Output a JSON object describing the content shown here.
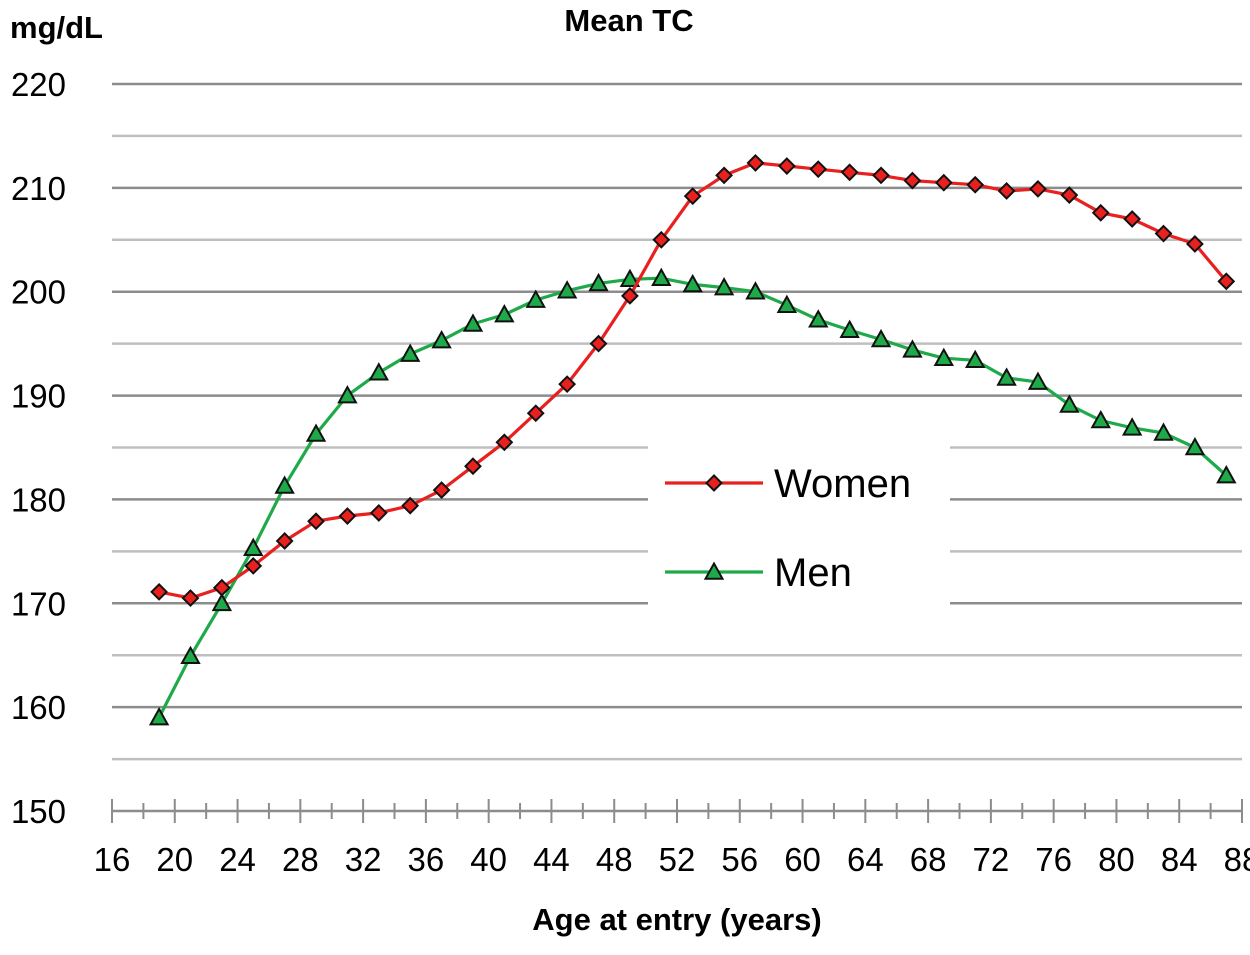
{
  "chart_data": {
    "type": "line",
    "title": "Mean TC",
    "ylabel": "mg/dL",
    "xlabel": "Age at entry (years)",
    "xlim": [
      16,
      88
    ],
    "ylim": [
      150,
      220
    ],
    "xticks": [
      16,
      20,
      24,
      28,
      32,
      36,
      40,
      44,
      48,
      52,
      56,
      60,
      64,
      68,
      72,
      76,
      80,
      84,
      88
    ],
    "yticks": [
      150,
      160,
      170,
      180,
      190,
      200,
      210,
      220
    ],
    "grid": true,
    "legend_position": "center-right",
    "series": [
      {
        "name": "Women",
        "color": "#e8201e",
        "marker": "diamond",
        "x": [
          19,
          21,
          23,
          25,
          27,
          29,
          31,
          33,
          35,
          37,
          39,
          41,
          43,
          45,
          47,
          49,
          51,
          53,
          55,
          57,
          59,
          61,
          63,
          65,
          67,
          69,
          71,
          73,
          75,
          77,
          79,
          81,
          83,
          85,
          87
        ],
        "values": [
          171.1,
          170.5,
          171.5,
          173.6,
          176.0,
          177.9,
          178.4,
          178.7,
          179.4,
          180.9,
          183.2,
          185.5,
          188.3,
          191.1,
          195.0,
          199.6,
          205.0,
          209.2,
          211.2,
          212.4,
          212.1,
          211.8,
          211.5,
          211.2,
          210.7,
          210.5,
          210.3,
          209.7,
          209.9,
          209.3,
          207.6,
          207.0,
          205.6,
          204.6,
          201.0
        ]
      },
      {
        "name": "Men",
        "color": "#1faa4a",
        "marker": "triangle",
        "x": [
          19,
          21,
          23,
          25,
          27,
          29,
          31,
          33,
          35,
          37,
          39,
          41,
          43,
          45,
          47,
          49,
          51,
          53,
          55,
          57,
          59,
          61,
          63,
          65,
          67,
          69,
          71,
          73,
          75,
          77,
          79,
          81,
          83,
          85,
          87
        ],
        "values": [
          159.0,
          164.9,
          170.0,
          175.3,
          181.3,
          186.3,
          190.0,
          192.2,
          194.0,
          195.3,
          196.9,
          197.8,
          199.2,
          200.1,
          200.8,
          201.2,
          201.3,
          200.7,
          200.4,
          200.0,
          198.7,
          197.3,
          196.3,
          195.4,
          194.4,
          193.6,
          193.4,
          191.7,
          191.3,
          189.1,
          187.6,
          186.9,
          186.4,
          185.0,
          182.3
        ]
      }
    ]
  }
}
